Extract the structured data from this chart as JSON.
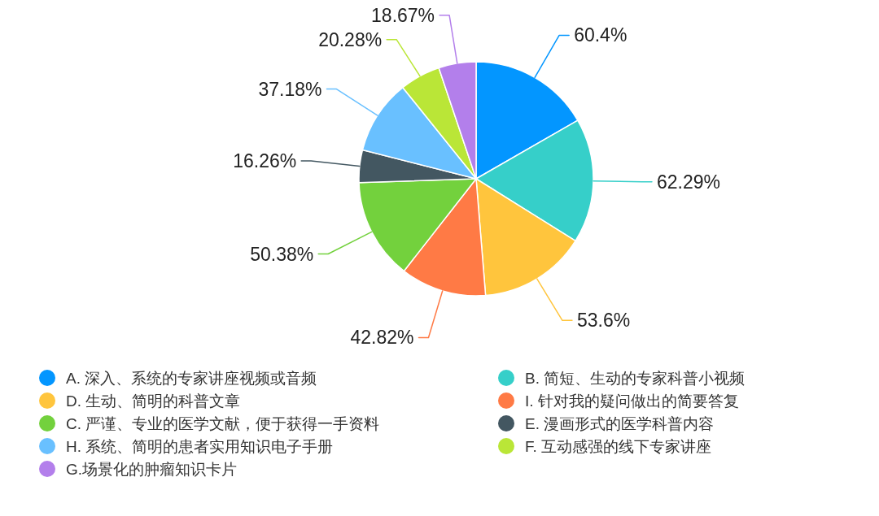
{
  "chart_data": {
    "type": "pie",
    "categories": [
      "A. 深入、系统的专家讲座视频或音频",
      "B. 简短、生动的专家科普小视频",
      "D. 生动、简明的科普文章",
      "I. 针对我的疑问做出的简要答复",
      "C. 严谨、专业的医学文献，便于获得一手资料",
      "E. 漫画形式的医学科普内容",
      "H. 系统、简明的患者实用知识电子手册",
      "F. 互动感强的线下专家讲座",
      "G.场景化的肿瘤知识卡片"
    ],
    "values": [
      60.4,
      62.29,
      53.6,
      42.82,
      50.38,
      16.26,
      37.18,
      20.28,
      18.67
    ],
    "value_labels": [
      "60.4%",
      "62.29%",
      "53.6%",
      "42.82%",
      "50.38%",
      "16.26%",
      "37.18%",
      "20.28%",
      "18.67%"
    ],
    "colors": [
      "#0396ff",
      "#36cfc9",
      "#ffc53d",
      "#ff7a45",
      "#73d13d",
      "#435761",
      "#69c0ff",
      "#bae637",
      "#b37feb"
    ],
    "legend": "bottom"
  }
}
